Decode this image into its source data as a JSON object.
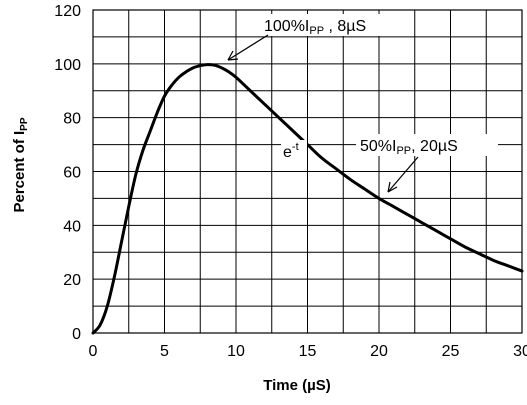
{
  "chart_data": {
    "type": "line",
    "xlabel": "Time (µS)",
    "ylabel_main": "Percent of I",
    "ylabel_sub": "PP",
    "xlim": [
      0,
      30
    ],
    "ylim": [
      0,
      120
    ],
    "x_ticks": [
      "0",
      "5",
      "10",
      "15",
      "20",
      "25",
      "30"
    ],
    "y_ticks": [
      "0",
      "20",
      "40",
      "60",
      "80",
      "100",
      "120"
    ],
    "grid": true,
    "series": [
      {
        "x": [
          0,
          0.5,
          1,
          1.5,
          2,
          2.5,
          3,
          3.5,
          4,
          4.5,
          5,
          5.5,
          6,
          6.5,
          7,
          7.5,
          8,
          8.5,
          9,
          9.5,
          10,
          11,
          12,
          13,
          14,
          15,
          16,
          17,
          18,
          19,
          20,
          21,
          22,
          23,
          24,
          25,
          26,
          27,
          28,
          29,
          30
        ],
        "y": [
          0,
          3,
          10,
          21,
          34,
          47,
          59,
          68,
          75,
          82,
          88,
          92,
          95,
          97,
          98.5,
          99.3,
          99.7,
          99.5,
          98.5,
          97,
          95,
          90,
          85,
          80,
          75,
          70,
          65,
          61,
          57,
          53.5,
          50,
          47,
          44,
          41,
          38,
          35,
          32,
          29.5,
          27,
          25,
          23
        ]
      }
    ],
    "annotations": [
      {
        "main": "100%I",
        "sub": "PP",
        "tail": " , 8µS",
        "x": 8,
        "y": 100
      },
      {
        "main": "50%I",
        "sub": "PP",
        "tail": ", 20µS",
        "x": 20,
        "y": 50
      },
      {
        "main": "e",
        "sup": "-t",
        "x": 14,
        "y": 74
      }
    ]
  }
}
